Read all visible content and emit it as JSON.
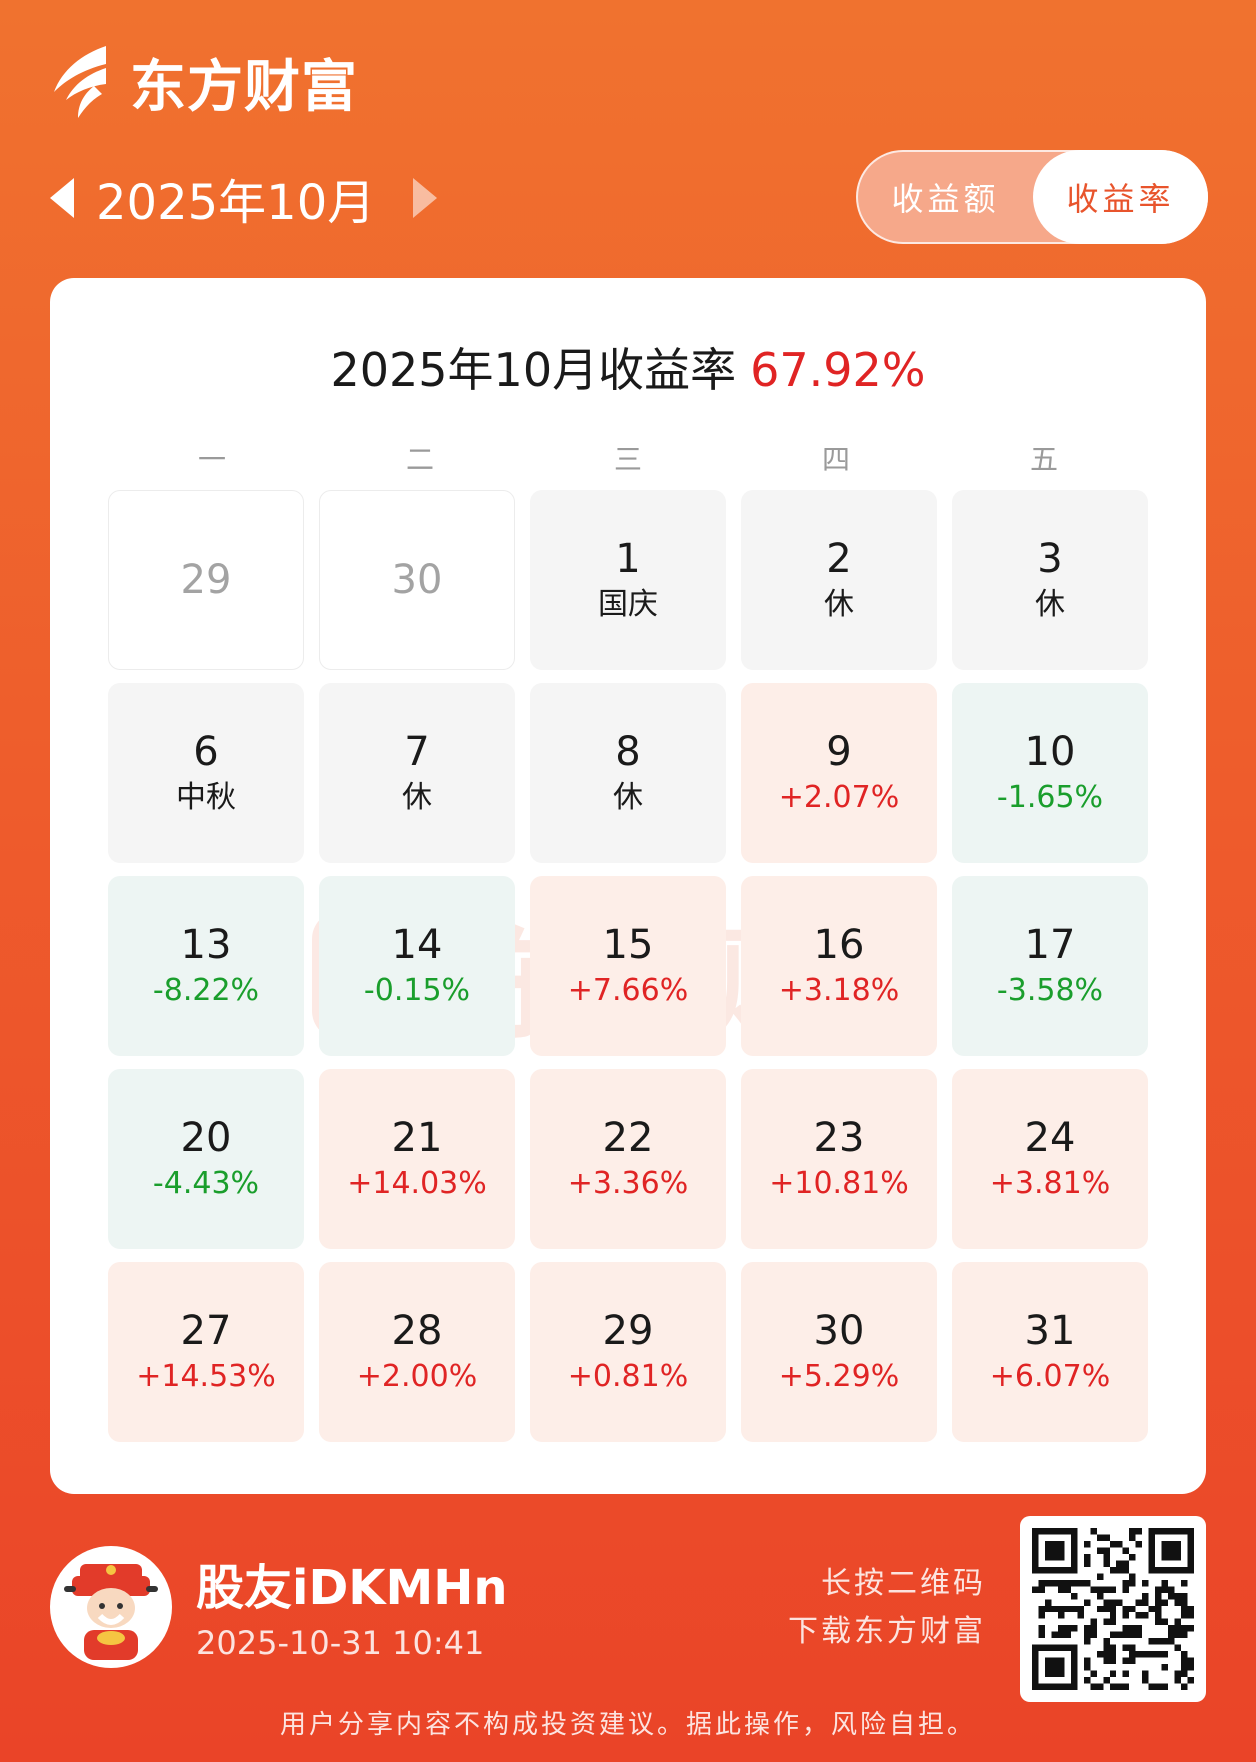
{
  "app": {
    "brand_name": "东方财富",
    "brand_icon": "eastmoney-logo-icon",
    "colors": {
      "brand": "#e8542c",
      "gain": "#e02424",
      "loss": "#1a9e2c"
    }
  },
  "header": {
    "month_label": "2025年10月",
    "prev_icon": "triangle-left-icon",
    "next_icon": "triangle-right-icon"
  },
  "mode_toggle": {
    "options": [
      "收益额",
      "收益率"
    ],
    "selected": "收益率"
  },
  "summary": {
    "title": "2025年10月收益率",
    "rate": "67.92%"
  },
  "watermark_text": "东方财富",
  "weekdays": [
    "一",
    "二",
    "三",
    "四",
    "五"
  ],
  "calendar": [
    {
      "day": "29",
      "sub": "",
      "kind": "outside"
    },
    {
      "day": "30",
      "sub": "",
      "kind": "outside"
    },
    {
      "day": "1",
      "sub": "国庆",
      "kind": "holiday"
    },
    {
      "day": "2",
      "sub": "休",
      "kind": "holiday"
    },
    {
      "day": "3",
      "sub": "休",
      "kind": "holiday"
    },
    {
      "day": "6",
      "sub": "中秋",
      "kind": "holiday"
    },
    {
      "day": "7",
      "sub": "休",
      "kind": "holiday"
    },
    {
      "day": "8",
      "sub": "休",
      "kind": "holiday"
    },
    {
      "day": "9",
      "sub": "+2.07%",
      "kind": "up"
    },
    {
      "day": "10",
      "sub": "-1.65%",
      "kind": "down"
    },
    {
      "day": "13",
      "sub": "-8.22%",
      "kind": "down"
    },
    {
      "day": "14",
      "sub": "-0.15%",
      "kind": "down"
    },
    {
      "day": "15",
      "sub": "+7.66%",
      "kind": "up"
    },
    {
      "day": "16",
      "sub": "+3.18%",
      "kind": "up"
    },
    {
      "day": "17",
      "sub": "-3.58%",
      "kind": "down"
    },
    {
      "day": "20",
      "sub": "-4.43%",
      "kind": "down"
    },
    {
      "day": "21",
      "sub": "+14.03%",
      "kind": "up"
    },
    {
      "day": "22",
      "sub": "+3.36%",
      "kind": "up"
    },
    {
      "day": "23",
      "sub": "+10.81%",
      "kind": "up"
    },
    {
      "day": "24",
      "sub": "+3.81%",
      "kind": "up"
    },
    {
      "day": "27",
      "sub": "+14.53%",
      "kind": "up"
    },
    {
      "day": "28",
      "sub": "+2.00%",
      "kind": "up"
    },
    {
      "day": "29",
      "sub": "+0.81%",
      "kind": "up"
    },
    {
      "day": "30",
      "sub": "+5.29%",
      "kind": "up"
    },
    {
      "day": "31",
      "sub": "+6.07%",
      "kind": "up"
    }
  ],
  "footer": {
    "user_name": "股友iDKMHn",
    "timestamp": "2025-10-31 10:41",
    "qr_hint_line1": "长按二维码",
    "qr_hint_line2": "下载东方财富",
    "disclaimer": "用户分享内容不构成投资建议。据此操作，风险自担。",
    "avatar_icon": "god-of-wealth-avatar-icon",
    "qr_icon": "qr-code-icon"
  }
}
